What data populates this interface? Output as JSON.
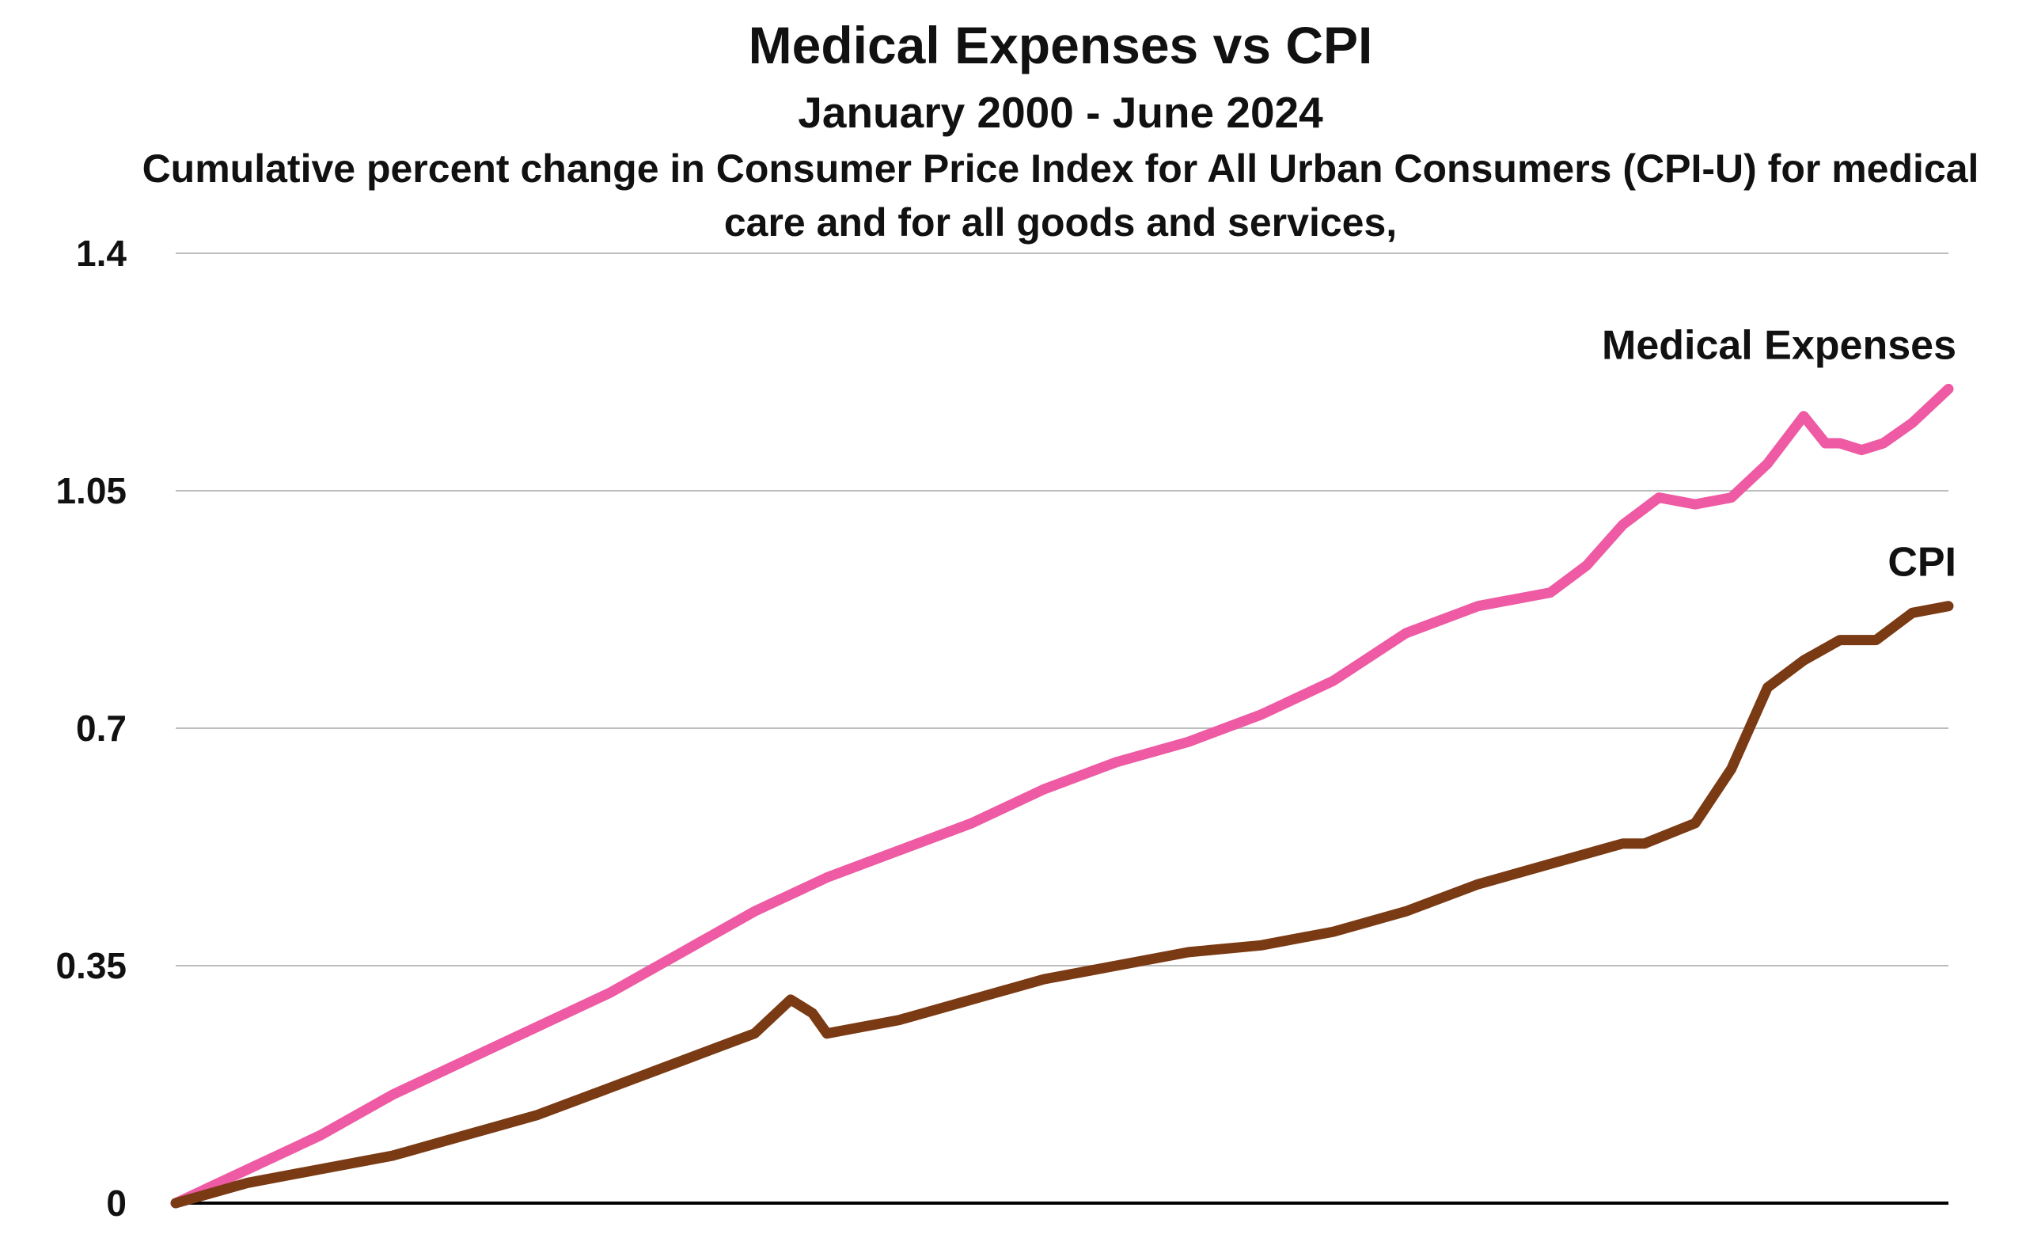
{
  "chart_data": {
    "type": "line",
    "title": "Medical Expenses vs CPI",
    "subtitle": "January 2000 - June 2024",
    "description": "Cumulative percent change in Consumer Price Index for All Urban Consumers (CPI-U) for medical care and for all goods and services,",
    "xlabel": "",
    "ylabel": "",
    "ylim": [
      0,
      1.4
    ],
    "xlim": [
      2000.0,
      2024.5
    ],
    "y_ticks": [
      "0",
      "0.35",
      "0.7",
      "1.05",
      "1.4"
    ],
    "grid": true,
    "series": [
      {
        "name": "Medical Expenses",
        "color": "#ee5aa3",
        "x": [
          2000.0,
          2001.0,
          2002.0,
          2003.0,
          2004.0,
          2005.0,
          2006.0,
          2007.0,
          2008.0,
          2009.0,
          2010.0,
          2011.0,
          2012.0,
          2013.0,
          2014.0,
          2015.0,
          2016.0,
          2017.0,
          2018.0,
          2019.0,
          2019.5,
          2020.0,
          2020.5,
          2021.0,
          2021.5,
          2022.0,
          2022.5,
          2022.8,
          2023.0,
          2023.3,
          2023.6,
          2024.0,
          2024.5
        ],
        "values": [
          0.0,
          0.05,
          0.1,
          0.16,
          0.21,
          0.26,
          0.31,
          0.37,
          0.43,
          0.48,
          0.52,
          0.56,
          0.61,
          0.65,
          0.68,
          0.72,
          0.77,
          0.84,
          0.88,
          0.9,
          0.94,
          1.0,
          1.04,
          1.03,
          1.04,
          1.09,
          1.16,
          1.12,
          1.12,
          1.11,
          1.12,
          1.15,
          1.2
        ]
      },
      {
        "name": "CPI",
        "color": "#7a3a14",
        "x": [
          2000.0,
          2001.0,
          2002.0,
          2003.0,
          2004.0,
          2005.0,
          2006.0,
          2007.0,
          2008.0,
          2008.5,
          2008.8,
          2009.0,
          2010.0,
          2011.0,
          2012.0,
          2013.0,
          2014.0,
          2015.0,
          2016.0,
          2017.0,
          2018.0,
          2019.0,
          2020.0,
          2020.3,
          2021.0,
          2021.5,
          2022.0,
          2022.5,
          2023.0,
          2023.5,
          2024.0,
          2024.5
        ],
        "values": [
          0.0,
          0.03,
          0.05,
          0.07,
          0.1,
          0.13,
          0.17,
          0.21,
          0.25,
          0.3,
          0.28,
          0.25,
          0.27,
          0.3,
          0.33,
          0.35,
          0.37,
          0.38,
          0.4,
          0.43,
          0.47,
          0.5,
          0.53,
          0.53,
          0.56,
          0.64,
          0.76,
          0.8,
          0.83,
          0.83,
          0.87,
          0.88
        ]
      }
    ]
  }
}
